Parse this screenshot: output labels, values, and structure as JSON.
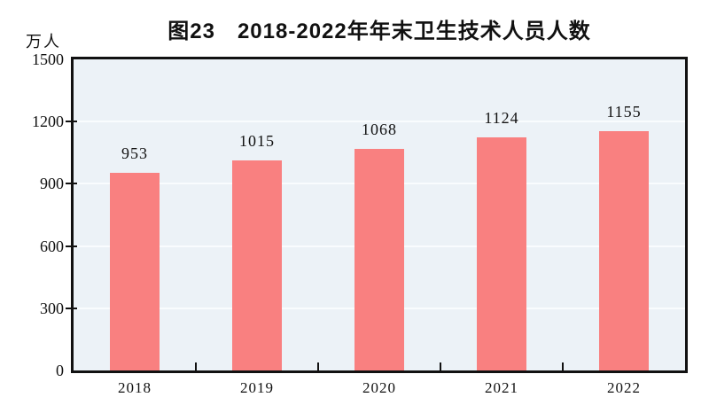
{
  "page": {
    "background": "#ffffff"
  },
  "chart_data": {
    "type": "bar",
    "title": "图23　2018-2022年年末卫生技术人员人数",
    "unit_label": "万人",
    "categories": [
      "2018",
      "2019",
      "2020",
      "2021",
      "2022"
    ],
    "values": [
      953,
      1015,
      1068,
      1124,
      1155
    ],
    "value_labels": [
      "953",
      "1015",
      "1068",
      "1124",
      "1155"
    ],
    "xlabel": "",
    "ylabel": "万人",
    "ylim": [
      0,
      1500
    ],
    "yticks": [
      0,
      300,
      600,
      900,
      1200,
      1500
    ],
    "grid": "horizontal-only",
    "legend": "none",
    "colors": {
      "bar": "#f98080",
      "plot_background": "#ecf2f7",
      "gridline": "#f9fcfe",
      "axis": "#111111",
      "text": "#111111"
    }
  }
}
